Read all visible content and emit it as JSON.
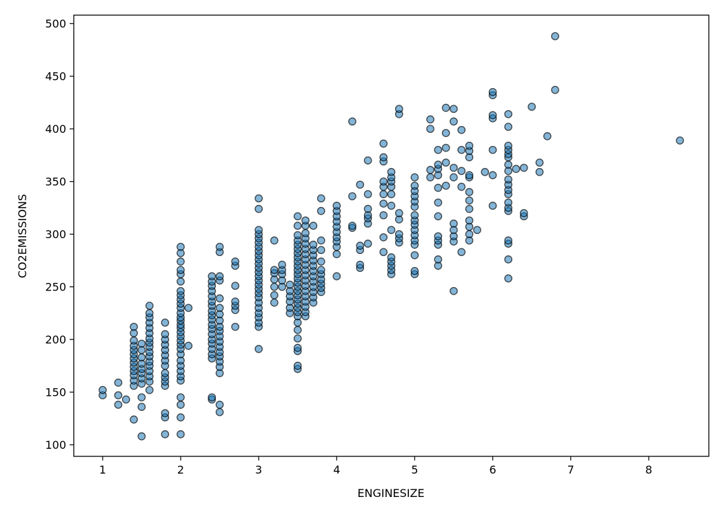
{
  "chart_data": {
    "type": "scatter",
    "title": "",
    "xlabel": "ENGINESIZE",
    "ylabel": "CO2EMISSIONS",
    "xlim": [
      0.63,
      8.77
    ],
    "ylim": [
      89,
      508
    ],
    "xticks": [
      1,
      2,
      3,
      4,
      5,
      6,
      7,
      8
    ],
    "yticks": [
      100,
      150,
      200,
      250,
      300,
      350,
      400,
      450,
      500
    ],
    "grid": false,
    "legend": "none",
    "marker_color": "#1f77b4",
    "marker_edge_color": "#000000",
    "points": [
      [
        1.0,
        147
      ],
      [
        1.0,
        152
      ],
      [
        1.2,
        159
      ],
      [
        1.2,
        147
      ],
      [
        1.2,
        138
      ],
      [
        1.3,
        143
      ],
      [
        1.4,
        124
      ],
      [
        1.4,
        156
      ],
      [
        1.4,
        161
      ],
      [
        1.4,
        166
      ],
      [
        1.4,
        170
      ],
      [
        1.4,
        174
      ],
      [
        1.4,
        178
      ],
      [
        1.4,
        182
      ],
      [
        1.4,
        186
      ],
      [
        1.4,
        190
      ],
      [
        1.4,
        194
      ],
      [
        1.4,
        199
      ],
      [
        1.4,
        206
      ],
      [
        1.4,
        212
      ],
      [
        1.5,
        108
      ],
      [
        1.5,
        136
      ],
      [
        1.5,
        145
      ],
      [
        1.5,
        158
      ],
      [
        1.5,
        163
      ],
      [
        1.5,
        168
      ],
      [
        1.5,
        172
      ],
      [
        1.5,
        177
      ],
      [
        1.5,
        183
      ],
      [
        1.5,
        190
      ],
      [
        1.5,
        196
      ],
      [
        1.6,
        152
      ],
      [
        1.6,
        160
      ],
      [
        1.6,
        165
      ],
      [
        1.6,
        170
      ],
      [
        1.6,
        175
      ],
      [
        1.6,
        179
      ],
      [
        1.6,
        184
      ],
      [
        1.6,
        188
      ],
      [
        1.6,
        193
      ],
      [
        1.6,
        197
      ],
      [
        1.6,
        201
      ],
      [
        1.6,
        206
      ],
      [
        1.6,
        211
      ],
      [
        1.6,
        216
      ],
      [
        1.6,
        221
      ],
      [
        1.6,
        225
      ],
      [
        1.6,
        232
      ],
      [
        1.8,
        110
      ],
      [
        1.8,
        126
      ],
      [
        1.8,
        130
      ],
      [
        1.8,
        156
      ],
      [
        1.8,
        160
      ],
      [
        1.8,
        164
      ],
      [
        1.8,
        168
      ],
      [
        1.8,
        175
      ],
      [
        1.8,
        180
      ],
      [
        1.8,
        185
      ],
      [
        1.8,
        190
      ],
      [
        1.8,
        195
      ],
      [
        1.8,
        200
      ],
      [
        1.8,
        205
      ],
      [
        1.8,
        216
      ],
      [
        2.0,
        110
      ],
      [
        2.0,
        126
      ],
      [
        2.0,
        138
      ],
      [
        2.0,
        145
      ],
      [
        2.0,
        161
      ],
      [
        2.0,
        165
      ],
      [
        2.0,
        170
      ],
      [
        2.0,
        175
      ],
      [
        2.0,
        180
      ],
      [
        2.0,
        186
      ],
      [
        2.0,
        191
      ],
      [
        2.0,
        195
      ],
      [
        2.0,
        199
      ],
      [
        2.0,
        203
      ],
      [
        2.0,
        207
      ],
      [
        2.0,
        211
      ],
      [
        2.0,
        214
      ],
      [
        2.0,
        218
      ],
      [
        2.0,
        221
      ],
      [
        2.0,
        225
      ],
      [
        2.0,
        230
      ],
      [
        2.0,
        234
      ],
      [
        2.0,
        238
      ],
      [
        2.0,
        242
      ],
      [
        2.0,
        246
      ],
      [
        2.0,
        255
      ],
      [
        2.0,
        262
      ],
      [
        2.0,
        266
      ],
      [
        2.0,
        274
      ],
      [
        2.0,
        282
      ],
      [
        2.0,
        288
      ],
      [
        2.1,
        194
      ],
      [
        2.1,
        230
      ],
      [
        2.4,
        143
      ],
      [
        2.4,
        145
      ],
      [
        2.4,
        182
      ],
      [
        2.4,
        186
      ],
      [
        2.4,
        191
      ],
      [
        2.4,
        196
      ],
      [
        2.4,
        200
      ],
      [
        2.4,
        205
      ],
      [
        2.4,
        210
      ],
      [
        2.4,
        214
      ],
      [
        2.4,
        219
      ],
      [
        2.4,
        223
      ],
      [
        2.4,
        227
      ],
      [
        2.4,
        232
      ],
      [
        2.4,
        236
      ],
      [
        2.4,
        241
      ],
      [
        2.4,
        246
      ],
      [
        2.4,
        251
      ],
      [
        2.4,
        255
      ],
      [
        2.4,
        260
      ],
      [
        2.5,
        131
      ],
      [
        2.5,
        138
      ],
      [
        2.5,
        168
      ],
      [
        2.5,
        174
      ],
      [
        2.5,
        179
      ],
      [
        2.5,
        184
      ],
      [
        2.5,
        188
      ],
      [
        2.5,
        193
      ],
      [
        2.5,
        198
      ],
      [
        2.5,
        203
      ],
      [
        2.5,
        208
      ],
      [
        2.5,
        212
      ],
      [
        2.5,
        218
      ],
      [
        2.5,
        224
      ],
      [
        2.5,
        230
      ],
      [
        2.5,
        239
      ],
      [
        2.5,
        256
      ],
      [
        2.5,
        260
      ],
      [
        2.5,
        283
      ],
      [
        2.5,
        288
      ],
      [
        2.7,
        212
      ],
      [
        2.7,
        228
      ],
      [
        2.7,
        232
      ],
      [
        2.7,
        236
      ],
      [
        2.7,
        251
      ],
      [
        2.7,
        270
      ],
      [
        2.7,
        274
      ],
      [
        3.0,
        191
      ],
      [
        3.0,
        212
      ],
      [
        3.0,
        216
      ],
      [
        3.0,
        221
      ],
      [
        3.0,
        225
      ],
      [
        3.0,
        230
      ],
      [
        3.0,
        235
      ],
      [
        3.0,
        240
      ],
      [
        3.0,
        244
      ],
      [
        3.0,
        248
      ],
      [
        3.0,
        252
      ],
      [
        3.0,
        256
      ],
      [
        3.0,
        260
      ],
      [
        3.0,
        264
      ],
      [
        3.0,
        268
      ],
      [
        3.0,
        272
      ],
      [
        3.0,
        276
      ],
      [
        3.0,
        280
      ],
      [
        3.0,
        284
      ],
      [
        3.0,
        288
      ],
      [
        3.0,
        292
      ],
      [
        3.0,
        296
      ],
      [
        3.0,
        300
      ],
      [
        3.0,
        304
      ],
      [
        3.0,
        324
      ],
      [
        3.0,
        334
      ],
      [
        3.2,
        235
      ],
      [
        3.2,
        242
      ],
      [
        3.2,
        250
      ],
      [
        3.2,
        257
      ],
      [
        3.2,
        263
      ],
      [
        3.2,
        266
      ],
      [
        3.2,
        294
      ],
      [
        3.3,
        250
      ],
      [
        3.3,
        256
      ],
      [
        3.3,
        262
      ],
      [
        3.3,
        266
      ],
      [
        3.3,
        271
      ],
      [
        3.4,
        225
      ],
      [
        3.4,
        230
      ],
      [
        3.4,
        236
      ],
      [
        3.4,
        241
      ],
      [
        3.4,
        246
      ],
      [
        3.4,
        252
      ],
      [
        3.5,
        172
      ],
      [
        3.5,
        175
      ],
      [
        3.5,
        189
      ],
      [
        3.5,
        192
      ],
      [
        3.5,
        201
      ],
      [
        3.5,
        209
      ],
      [
        3.5,
        216
      ],
      [
        3.5,
        222
      ],
      [
        3.5,
        226
      ],
      [
        3.5,
        230
      ],
      [
        3.5,
        234
      ],
      [
        3.5,
        238
      ],
      [
        3.5,
        242
      ],
      [
        3.5,
        246
      ],
      [
        3.5,
        250
      ],
      [
        3.5,
        254
      ],
      [
        3.5,
        258
      ],
      [
        3.5,
        262
      ],
      [
        3.5,
        266
      ],
      [
        3.5,
        270
      ],
      [
        3.5,
        274
      ],
      [
        3.5,
        278
      ],
      [
        3.5,
        282
      ],
      [
        3.5,
        286
      ],
      [
        3.5,
        290
      ],
      [
        3.5,
        294
      ],
      [
        3.5,
        299
      ],
      [
        3.5,
        308
      ],
      [
        3.5,
        317
      ],
      [
        3.6,
        222
      ],
      [
        3.6,
        226
      ],
      [
        3.6,
        231
      ],
      [
        3.6,
        236
      ],
      [
        3.6,
        241
      ],
      [
        3.6,
        246
      ],
      [
        3.6,
        251
      ],
      [
        3.6,
        256
      ],
      [
        3.6,
        261
      ],
      [
        3.6,
        266
      ],
      [
        3.6,
        271
      ],
      [
        3.6,
        276
      ],
      [
        3.6,
        281
      ],
      [
        3.6,
        286
      ],
      [
        3.6,
        291
      ],
      [
        3.6,
        296
      ],
      [
        3.6,
        301
      ],
      [
        3.6,
        308
      ],
      [
        3.6,
        313
      ],
      [
        3.7,
        235
      ],
      [
        3.7,
        240
      ],
      [
        3.7,
        245
      ],
      [
        3.7,
        250
      ],
      [
        3.7,
        255
      ],
      [
        3.7,
        260
      ],
      [
        3.7,
        265
      ],
      [
        3.7,
        270
      ],
      [
        3.7,
        275
      ],
      [
        3.7,
        280
      ],
      [
        3.7,
        285
      ],
      [
        3.7,
        290
      ],
      [
        3.7,
        308
      ],
      [
        3.8,
        245
      ],
      [
        3.8,
        249
      ],
      [
        3.8,
        253
      ],
      [
        3.8,
        257
      ],
      [
        3.8,
        262
      ],
      [
        3.8,
        266
      ],
      [
        3.8,
        274
      ],
      [
        3.8,
        285
      ],
      [
        3.8,
        294
      ],
      [
        3.8,
        322
      ],
      [
        3.8,
        334
      ],
      [
        4.0,
        260
      ],
      [
        4.0,
        281
      ],
      [
        4.0,
        288
      ],
      [
        4.0,
        293
      ],
      [
        4.0,
        297
      ],
      [
        4.0,
        302
      ],
      [
        4.0,
        307
      ],
      [
        4.0,
        312
      ],
      [
        4.0,
        317
      ],
      [
        4.0,
        322
      ],
      [
        4.0,
        327
      ],
      [
        4.2,
        306
      ],
      [
        4.2,
        308
      ],
      [
        4.2,
        336
      ],
      [
        4.2,
        407
      ],
      [
        4.3,
        268
      ],
      [
        4.3,
        271
      ],
      [
        4.3,
        285
      ],
      [
        4.3,
        289
      ],
      [
        4.3,
        347
      ],
      [
        4.4,
        291
      ],
      [
        4.4,
        310
      ],
      [
        4.4,
        315
      ],
      [
        4.4,
        318
      ],
      [
        4.4,
        324
      ],
      [
        4.4,
        338
      ],
      [
        4.4,
        370
      ],
      [
        4.6,
        283
      ],
      [
        4.6,
        297
      ],
      [
        4.6,
        318
      ],
      [
        4.6,
        329
      ],
      [
        4.6,
        338
      ],
      [
        4.6,
        345
      ],
      [
        4.6,
        350
      ],
      [
        4.6,
        369
      ],
      [
        4.6,
        373
      ],
      [
        4.6,
        386
      ],
      [
        4.7,
        262
      ],
      [
        4.7,
        266
      ],
      [
        4.7,
        270
      ],
      [
        4.7,
        274
      ],
      [
        4.7,
        278
      ],
      [
        4.7,
        304
      ],
      [
        4.7,
        327
      ],
      [
        4.7,
        338
      ],
      [
        4.7,
        345
      ],
      [
        4.7,
        350
      ],
      [
        4.7,
        354
      ],
      [
        4.7,
        359
      ],
      [
        4.8,
        292
      ],
      [
        4.8,
        296
      ],
      [
        4.8,
        300
      ],
      [
        4.8,
        314
      ],
      [
        4.8,
        320
      ],
      [
        4.8,
        414
      ],
      [
        4.8,
        419
      ],
      [
        5.0,
        262
      ],
      [
        5.0,
        265
      ],
      [
        5.0,
        280
      ],
      [
        5.0,
        290
      ],
      [
        5.0,
        294
      ],
      [
        5.0,
        299
      ],
      [
        5.0,
        304
      ],
      [
        5.0,
        309
      ],
      [
        5.0,
        313
      ],
      [
        5.0,
        318
      ],
      [
        5.0,
        326
      ],
      [
        5.0,
        331
      ],
      [
        5.0,
        336
      ],
      [
        5.0,
        341
      ],
      [
        5.0,
        346
      ],
      [
        5.0,
        354
      ],
      [
        5.2,
        354
      ],
      [
        5.2,
        361
      ],
      [
        5.2,
        400
      ],
      [
        5.2,
        409
      ],
      [
        5.3,
        270
      ],
      [
        5.3,
        276
      ],
      [
        5.3,
        290
      ],
      [
        5.3,
        294
      ],
      [
        5.3,
        298
      ],
      [
        5.3,
        317
      ],
      [
        5.3,
        330
      ],
      [
        5.3,
        344
      ],
      [
        5.3,
        356
      ],
      [
        5.3,
        362
      ],
      [
        5.3,
        366
      ],
      [
        5.3,
        380
      ],
      [
        5.4,
        346
      ],
      [
        5.4,
        368
      ],
      [
        5.4,
        382
      ],
      [
        5.4,
        396
      ],
      [
        5.4,
        420
      ],
      [
        5.5,
        246
      ],
      [
        5.5,
        293
      ],
      [
        5.5,
        298
      ],
      [
        5.5,
        304
      ],
      [
        5.5,
        310
      ],
      [
        5.5,
        354
      ],
      [
        5.5,
        363
      ],
      [
        5.5,
        407
      ],
      [
        5.5,
        419
      ],
      [
        5.6,
        283
      ],
      [
        5.6,
        345
      ],
      [
        5.6,
        360
      ],
      [
        5.6,
        380
      ],
      [
        5.6,
        399
      ],
      [
        5.7,
        294
      ],
      [
        5.7,
        300
      ],
      [
        5.7,
        307
      ],
      [
        5.7,
        313
      ],
      [
        5.7,
        324
      ],
      [
        5.7,
        332
      ],
      [
        5.7,
        340
      ],
      [
        5.7,
        354
      ],
      [
        5.7,
        356
      ],
      [
        5.7,
        373
      ],
      [
        5.7,
        379
      ],
      [
        5.7,
        384
      ],
      [
        5.8,
        304
      ],
      [
        5.9,
        359
      ],
      [
        6.0,
        327
      ],
      [
        6.0,
        356
      ],
      [
        6.0,
        380
      ],
      [
        6.0,
        410
      ],
      [
        6.0,
        413
      ],
      [
        6.0,
        432
      ],
      [
        6.0,
        435
      ],
      [
        6.2,
        258
      ],
      [
        6.2,
        276
      ],
      [
        6.2,
        291
      ],
      [
        6.2,
        294
      ],
      [
        6.2,
        322
      ],
      [
        6.2,
        325
      ],
      [
        6.2,
        330
      ],
      [
        6.2,
        338
      ],
      [
        6.2,
        342
      ],
      [
        6.2,
        347
      ],
      [
        6.2,
        352
      ],
      [
        6.2,
        360
      ],
      [
        6.2,
        366
      ],
      [
        6.2,
        373
      ],
      [
        6.2,
        376
      ],
      [
        6.2,
        380
      ],
      [
        6.2,
        384
      ],
      [
        6.2,
        402
      ],
      [
        6.2,
        414
      ],
      [
        6.3,
        362
      ],
      [
        6.4,
        317
      ],
      [
        6.4,
        320
      ],
      [
        6.4,
        363
      ],
      [
        6.5,
        421
      ],
      [
        6.6,
        359
      ],
      [
        6.6,
        368
      ],
      [
        6.7,
        393
      ],
      [
        6.8,
        437
      ],
      [
        6.8,
        488
      ],
      [
        8.4,
        389
      ]
    ]
  }
}
